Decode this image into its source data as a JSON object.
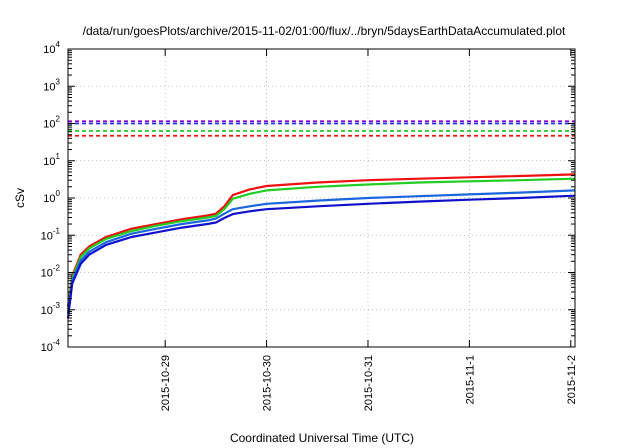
{
  "chart_data": {
    "type": "line",
    "title": "/data/run/goesPlots/archive/2015-11-02/01:00/flux/../bryn/5daysEarthDataAccumulated.plot",
    "xlabel": "Coordinated Universal Time (UTC)",
    "ylabel": "cSv",
    "yscale": "log",
    "ylim": [
      0.0001,
      10000
    ],
    "xlim": [
      "2015-10-28 01:00",
      "2015-11-02 01:00"
    ],
    "x_ticks": [
      {
        "date": "2015-10-29 00:00",
        "label": "2015-10-29"
      },
      {
        "date": "2015-10-30 00:00",
        "label": "2015-10-30"
      },
      {
        "date": "2015-10-31 00:00",
        "label": "2015-10-31"
      },
      {
        "date": "2015-11-01 00:00",
        "label": "2015-11-1"
      },
      {
        "date": "2015-11-02 00:00",
        "label": "2015-11-2"
      }
    ],
    "y_ticks": [
      {
        "value": 0.0001,
        "base": "10",
        "exp": "-4"
      },
      {
        "value": 0.001,
        "base": "10",
        "exp": "-3"
      },
      {
        "value": 0.01,
        "base": "10",
        "exp": "-2"
      },
      {
        "value": 0.1,
        "base": "10",
        "exp": "-1"
      },
      {
        "value": 1,
        "base": "10",
        "exp": "0"
      },
      {
        "value": 10,
        "base": "10",
        "exp": "1"
      },
      {
        "value": 100,
        "base": "10",
        "exp": "2"
      },
      {
        "value": 1000,
        "base": "10",
        "exp": "3"
      },
      {
        "value": 10000,
        "base": "10",
        "exp": "4"
      }
    ],
    "grid": true,
    "reference_lines": [
      {
        "value": 115,
        "color": "#8800cc"
      },
      {
        "value": 100,
        "color": "#2233ff"
      },
      {
        "value": 63,
        "color": "#22cc22"
      },
      {
        "value": 47,
        "color": "#ee1111"
      }
    ],
    "series": [
      {
        "color": "#ee1111",
        "points": [
          [
            "2015-10-28 01:00",
            0.0012
          ],
          [
            "2015-10-28 02:00",
            0.008
          ],
          [
            "2015-10-28 04:00",
            0.03
          ],
          [
            "2015-10-28 06:00",
            0.05
          ],
          [
            "2015-10-28 10:00",
            0.09
          ],
          [
            "2015-10-28 16:00",
            0.15
          ],
          [
            "2015-10-28 22:00",
            0.2
          ],
          [
            "2015-10-29 04:00",
            0.27
          ],
          [
            "2015-10-29 10:00",
            0.34
          ],
          [
            "2015-10-29 12:00",
            0.38
          ],
          [
            "2015-10-29 14:00",
            0.6
          ],
          [
            "2015-10-29 16:00",
            1.2
          ],
          [
            "2015-10-29 20:00",
            1.7
          ],
          [
            "2015-10-30 00:00",
            2.1
          ],
          [
            "2015-10-30 12:00",
            2.6
          ],
          [
            "2015-10-31 00:00",
            3.0
          ],
          [
            "2015-10-31 12:00",
            3.3
          ],
          [
            "2015-11-01 00:00",
            3.6
          ],
          [
            "2015-11-01 12:00",
            3.9
          ],
          [
            "2015-11-02 01:00",
            4.3
          ]
        ]
      },
      {
        "color": "#22cc22",
        "points": [
          [
            "2015-10-28 01:00",
            0.001
          ],
          [
            "2015-10-28 02:00",
            0.007
          ],
          [
            "2015-10-28 04:00",
            0.026
          ],
          [
            "2015-10-28 06:00",
            0.044
          ],
          [
            "2015-10-28 10:00",
            0.08
          ],
          [
            "2015-10-28 16:00",
            0.13
          ],
          [
            "2015-10-28 22:00",
            0.18
          ],
          [
            "2015-10-29 04:00",
            0.24
          ],
          [
            "2015-10-29 10:00",
            0.3
          ],
          [
            "2015-10-29 12:00",
            0.33
          ],
          [
            "2015-10-29 14:00",
            0.5
          ],
          [
            "2015-10-29 16:00",
            0.95
          ],
          [
            "2015-10-29 20:00",
            1.3
          ],
          [
            "2015-10-30 00:00",
            1.6
          ],
          [
            "2015-10-30 12:00",
            2.0
          ],
          [
            "2015-10-31 00:00",
            2.3
          ],
          [
            "2015-10-31 12:00",
            2.6
          ],
          [
            "2015-11-01 00:00",
            2.8
          ],
          [
            "2015-11-01 12:00",
            3.0
          ],
          [
            "2015-11-02 01:00",
            3.3
          ]
        ]
      },
      {
        "color": "#1a66dd",
        "points": [
          [
            "2015-10-28 01:00",
            0.0008
          ],
          [
            "2015-10-28 02:00",
            0.006
          ],
          [
            "2015-10-28 04:00",
            0.021
          ],
          [
            "2015-10-28 06:00",
            0.036
          ],
          [
            "2015-10-28 10:00",
            0.065
          ],
          [
            "2015-10-28 16:00",
            0.11
          ],
          [
            "2015-10-28 22:00",
            0.15
          ],
          [
            "2015-10-29 04:00",
            0.2
          ],
          [
            "2015-10-29 10:00",
            0.25
          ],
          [
            "2015-10-29 12:00",
            0.28
          ],
          [
            "2015-10-29 14:00",
            0.38
          ],
          [
            "2015-10-29 16:00",
            0.5
          ],
          [
            "2015-10-29 20:00",
            0.6
          ],
          [
            "2015-10-30 00:00",
            0.7
          ],
          [
            "2015-10-30 12:00",
            0.85
          ],
          [
            "2015-10-31 00:00",
            1.0
          ],
          [
            "2015-10-31 12:00",
            1.12
          ],
          [
            "2015-11-01 00:00",
            1.25
          ],
          [
            "2015-11-01 12:00",
            1.4
          ],
          [
            "2015-11-02 01:00",
            1.6
          ]
        ]
      },
      {
        "color": "#1111cc",
        "points": [
          [
            "2015-10-28 01:00",
            0.0006
          ],
          [
            "2015-10-28 02:00",
            0.005
          ],
          [
            "2015-10-28 04:00",
            0.017
          ],
          [
            "2015-10-28 06:00",
            0.03
          ],
          [
            "2015-10-28 10:00",
            0.055
          ],
          [
            "2015-10-28 16:00",
            0.09
          ],
          [
            "2015-10-28 22:00",
            0.12
          ],
          [
            "2015-10-29 04:00",
            0.16
          ],
          [
            "2015-10-29 10:00",
            0.2
          ],
          [
            "2015-10-29 12:00",
            0.22
          ],
          [
            "2015-10-29 14:00",
            0.29
          ],
          [
            "2015-10-29 16:00",
            0.37
          ],
          [
            "2015-10-29 20:00",
            0.44
          ],
          [
            "2015-10-30 00:00",
            0.5
          ],
          [
            "2015-10-30 12:00",
            0.6
          ],
          [
            "2015-10-31 00:00",
            0.7
          ],
          [
            "2015-10-31 12:00",
            0.8
          ],
          [
            "2015-11-01 00:00",
            0.9
          ],
          [
            "2015-11-01 12:00",
            1.0
          ],
          [
            "2015-11-02 01:00",
            1.15
          ]
        ]
      }
    ]
  }
}
